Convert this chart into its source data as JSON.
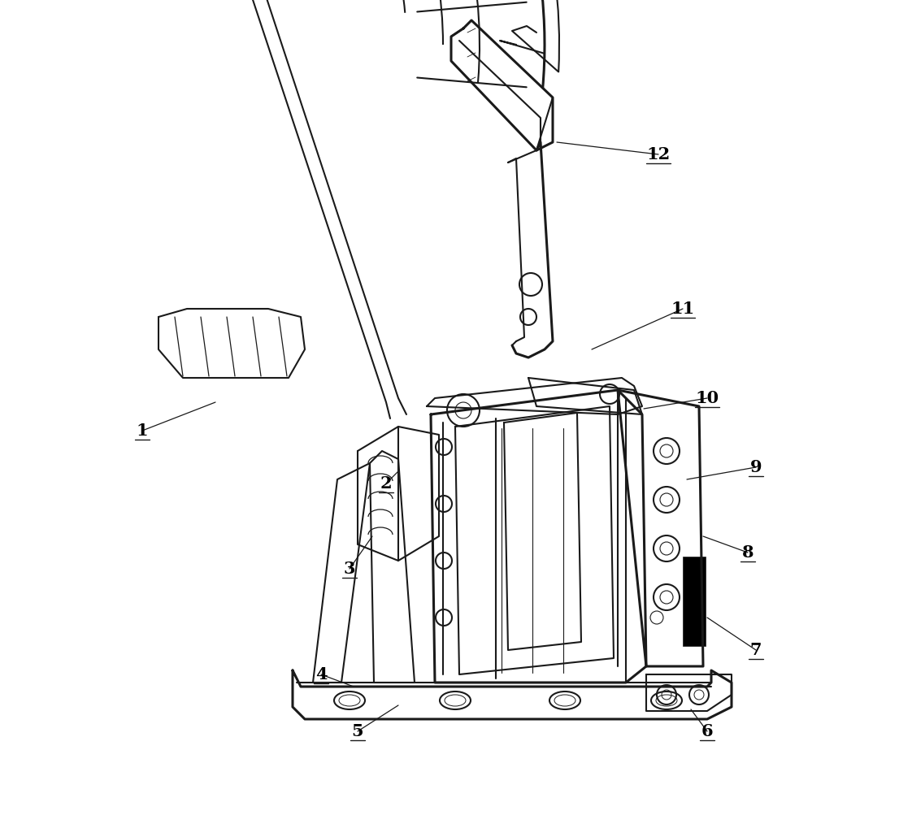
{
  "bg_color": "#ffffff",
  "line_color": "#1a1a1a",
  "fig_width": 11.22,
  "fig_height": 10.19,
  "dpi": 100
}
